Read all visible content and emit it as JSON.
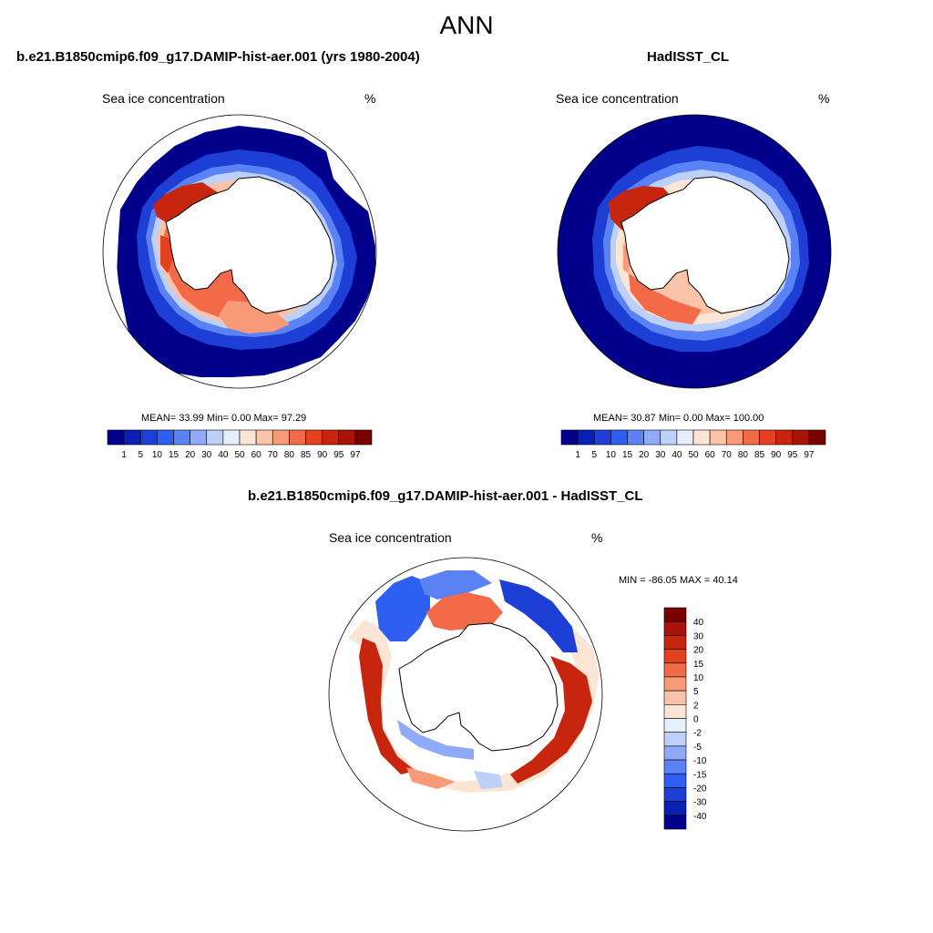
{
  "figure": {
    "title": "ANN",
    "panels": [
      {
        "title": "b.e21.B1850cmip6.f09_g17.DAMIP-hist-aer.001 (yrs 1980-2004)",
        "variable": "Sea ice concentration",
        "units": "%",
        "stats": "MEAN=  33.99  Min=    0.00  Max=   97.29"
      },
      {
        "title": "HadISST_CL",
        "variable": "Sea ice concentration",
        "units": "%",
        "stats": "MEAN=  30.87  Min=    0.00  Max= 100.00"
      },
      {
        "title": "b.e21.B1850cmip6.f09_g17.DAMIP-hist-aer.001 - HadISST_CL",
        "variable": "Sea ice concentration",
        "units": "%",
        "stats": "MIN = -86.05 MAX =  40.14"
      }
    ]
  },
  "chart_data": [
    {
      "type": "heatmap",
      "projection": "south polar stereographic",
      "title": "b.e21.B1850cmip6.f09_g17.DAMIP-hist-aer.001 (yrs 1980-2004)",
      "variable": "Sea ice concentration",
      "units": "%",
      "mean": 33.99,
      "min": 0.0,
      "max": 97.29,
      "colorbar": {
        "orientation": "horizontal",
        "levels": [
          "1",
          "5",
          "10",
          "15",
          "20",
          "30",
          "40",
          "50",
          "60",
          "70",
          "80",
          "85",
          "90",
          "95",
          "97"
        ],
        "colors": [
          "#00008b",
          "#0a1fb4",
          "#1d3fd6",
          "#2f5ff0",
          "#5a82f5",
          "#8eaaf8",
          "#bdd0fa",
          "#e6f0fd",
          "#fde5d6",
          "#fbc4aa",
          "#f89a78",
          "#f26a48",
          "#e2421f",
          "#c8250e",
          "#a81208",
          "#7a0000"
        ]
      }
    },
    {
      "type": "heatmap",
      "projection": "south polar stereographic",
      "title": "HadISST_CL",
      "variable": "Sea ice concentration",
      "units": "%",
      "mean": 30.87,
      "min": 0.0,
      "max": 100.0,
      "colorbar": {
        "orientation": "horizontal",
        "levels": [
          "1",
          "5",
          "10",
          "15",
          "20",
          "30",
          "40",
          "50",
          "60",
          "70",
          "80",
          "85",
          "90",
          "95",
          "97"
        ],
        "colors": [
          "#00008b",
          "#0a1fb4",
          "#1d3fd6",
          "#2f5ff0",
          "#5a82f5",
          "#8eaaf8",
          "#bdd0fa",
          "#e6f0fd",
          "#fde5d6",
          "#fbc4aa",
          "#f89a78",
          "#f26a48",
          "#e2421f",
          "#c8250e",
          "#a81208",
          "#7a0000"
        ]
      }
    },
    {
      "type": "heatmap",
      "projection": "south polar stereographic",
      "title": "b.e21.B1850cmip6.f09_g17.DAMIP-hist-aer.001 - HadISST_CL",
      "variable": "Sea ice concentration",
      "units": "%",
      "min": -86.05,
      "max": 40.14,
      "colorbar": {
        "orientation": "vertical",
        "levels": [
          "40",
          "30",
          "20",
          "15",
          "10",
          "5",
          "2",
          "0",
          "-2",
          "-5",
          "-10",
          "-15",
          "-20",
          "-30",
          "-40"
        ],
        "colors": [
          "#7a0000",
          "#a81208",
          "#c8250e",
          "#e2421f",
          "#f26a48",
          "#f89a78",
          "#fbc4aa",
          "#fde5d6",
          "#e6f0fd",
          "#bdd0fa",
          "#8eaaf8",
          "#5a82f5",
          "#2f5ff0",
          "#1d3fd6",
          "#0a1fb4",
          "#00008b"
        ]
      }
    }
  ]
}
